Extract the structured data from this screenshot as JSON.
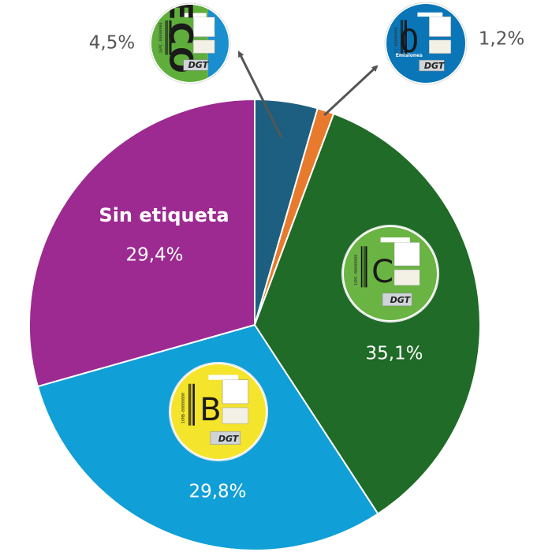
{
  "chart_data": {
    "type": "pie",
    "title": "",
    "start_angle_deg": 0,
    "direction": "clockwise",
    "slices": [
      {
        "key": "eco",
        "label": "",
        "value": 4.5,
        "value_label": "4,5%",
        "color": "#1d5f80",
        "badge": "eco"
      },
      {
        "key": "cero",
        "label": "",
        "value": 1.2,
        "value_label": "1,2%",
        "color": "#e87a2e",
        "badge": "cero"
      },
      {
        "key": "c",
        "label": "",
        "value": 35.1,
        "value_label": "35,1%",
        "color": "#1f6b27",
        "badge": "c"
      },
      {
        "key": "b",
        "label": "",
        "value": 29.8,
        "value_label": "29,8%",
        "color": "#109fd6",
        "badge": "b"
      },
      {
        "key": "sin",
        "label": "Sin etiqueta",
        "value": 29.4,
        "value_label": "29,4%",
        "color": "#9c2a91",
        "badge": ""
      }
    ]
  },
  "badges": {
    "eco": {
      "letter": "ECO",
      "brand": "DGT",
      "code": "16MC-00000000",
      "colors": [
        "#5fae3c",
        "#1a8fd0"
      ]
    },
    "cero": {
      "letter": "0",
      "sublabel": "Emisiones",
      "brand": "DGT",
      "code": "11-00000000",
      "colors": [
        "#0a76b8"
      ]
    },
    "c": {
      "letter": "C",
      "brand": "DGT",
      "code": "16MC-00000000",
      "colors": [
        "#6ab443"
      ]
    },
    "b": {
      "letter": "B",
      "brand": "DGT",
      "code": "16MB-00000000",
      "colors": [
        "#f4e42c"
      ]
    }
  }
}
